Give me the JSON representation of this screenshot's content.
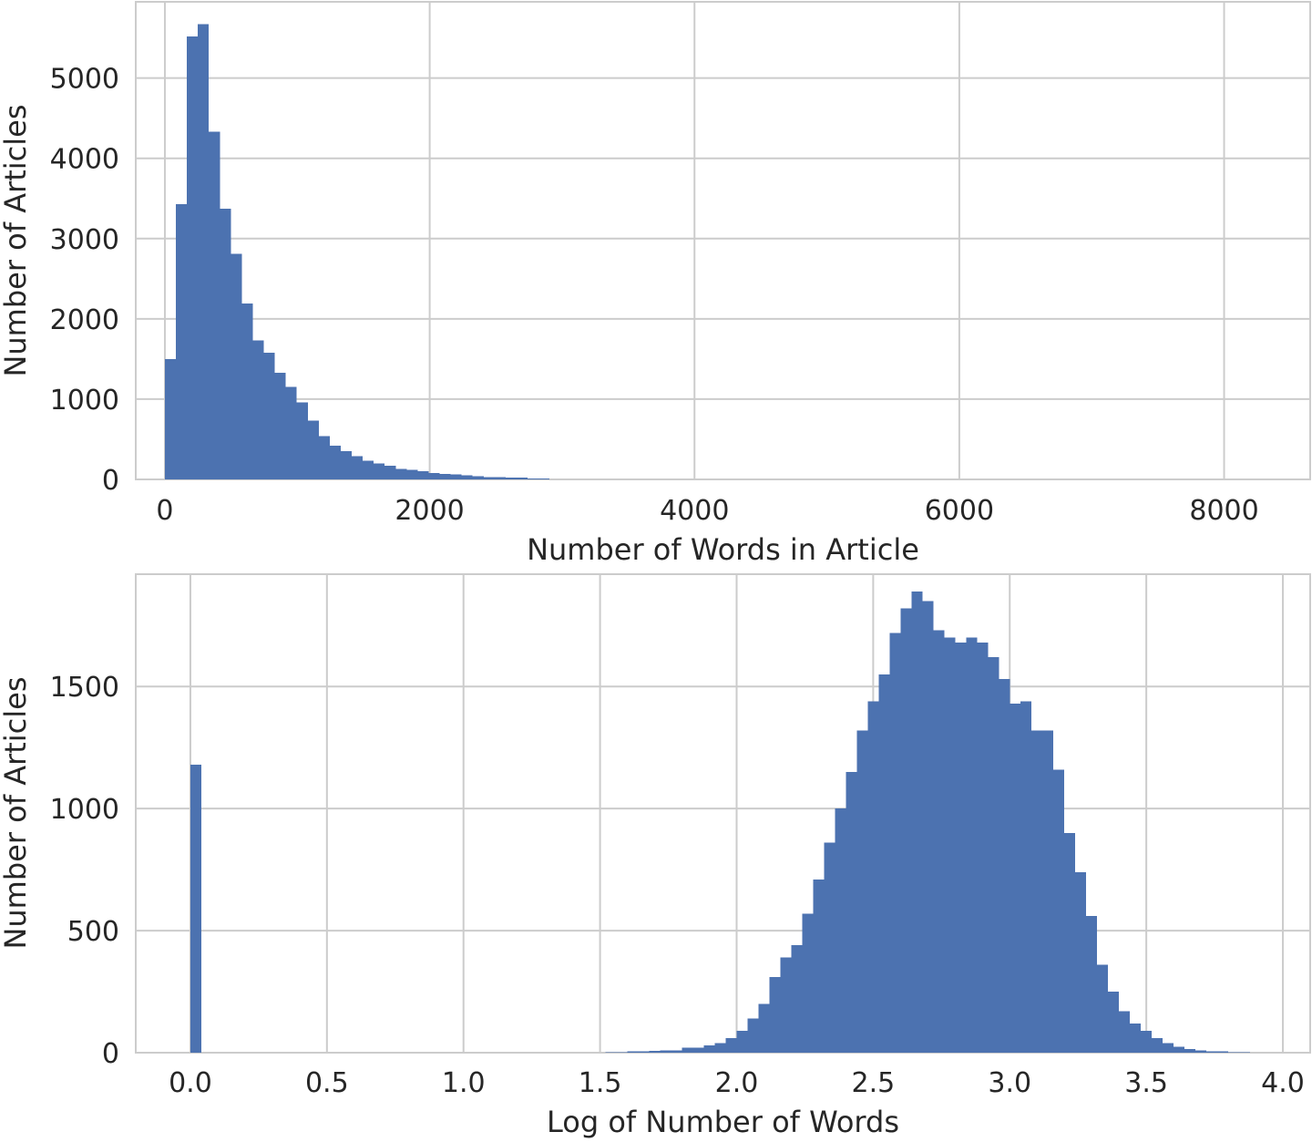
{
  "chart_data": [
    {
      "type": "bar",
      "title": "",
      "xlabel": "Number of Words in Article",
      "ylabel": "Number of Articles",
      "xlim": [
        -220,
        8650
      ],
      "ylim": [
        0,
        5950
      ],
      "xticks": [
        0,
        2000,
        4000,
        6000,
        8000
      ],
      "xtick_labels": [
        "0",
        "2000",
        "4000",
        "6000",
        "8000"
      ],
      "yticks": [
        0,
        1000,
        2000,
        3000,
        4000,
        5000
      ],
      "ytick_labels": [
        "0",
        "1000",
        "2000",
        "3000",
        "4000",
        "5000"
      ],
      "bin_start": 0,
      "bin_width": 83,
      "values": [
        1500,
        3430,
        5520,
        5670,
        4330,
        3370,
        2810,
        2190,
        1730,
        1580,
        1330,
        1150,
        960,
        730,
        540,
        420,
        350,
        290,
        230,
        200,
        170,
        130,
        120,
        100,
        80,
        70,
        60,
        50,
        40,
        30,
        30,
        20,
        20,
        10,
        10
      ],
      "bar_color": "#4c72b0",
      "grid": true,
      "legend": "none"
    },
    {
      "type": "bar",
      "title": "",
      "xlabel": "Log of Number of Words",
      "ylabel": "Number of Articles",
      "xlim": [
        -0.2,
        4.1
      ],
      "ylim": [
        0,
        1960
      ],
      "xticks": [
        0.0,
        0.5,
        1.0,
        1.5,
        2.0,
        2.5,
        3.0,
        3.5,
        4.0
      ],
      "xtick_labels": [
        "0.0",
        "0.5",
        "1.0",
        "1.5",
        "2.0",
        "2.5",
        "3.0",
        "3.5",
        "4.0"
      ],
      "yticks": [
        0,
        500,
        1000,
        1500
      ],
      "ytick_labels": [
        "0",
        "500",
        "1000",
        "1500"
      ],
      "bin_start": 0.0,
      "bin_width": 0.04,
      "values": [
        1180,
        0,
        0,
        0,
        0,
        0,
        0,
        0,
        0,
        0,
        0,
        0,
        0,
        0,
        0,
        0,
        0,
        0,
        0,
        0,
        0,
        0,
        0,
        0,
        0,
        0,
        0,
        0,
        0,
        0,
        0,
        0,
        0,
        0,
        0,
        0,
        0,
        0,
        2,
        2,
        5,
        5,
        8,
        10,
        10,
        20,
        20,
        30,
        40,
        60,
        90,
        140,
        200,
        310,
        390,
        440,
        570,
        710,
        860,
        1000,
        1150,
        1320,
        1440,
        1550,
        1720,
        1820,
        1890,
        1850,
        1730,
        1700,
        1680,
        1700,
        1680,
        1620,
        1530,
        1430,
        1440,
        1320,
        1320,
        1160,
        900,
        740,
        560,
        360,
        250,
        170,
        120,
        90,
        60,
        40,
        25,
        15,
        10,
        5,
        5,
        2,
        2
      ]
    }
  ]
}
